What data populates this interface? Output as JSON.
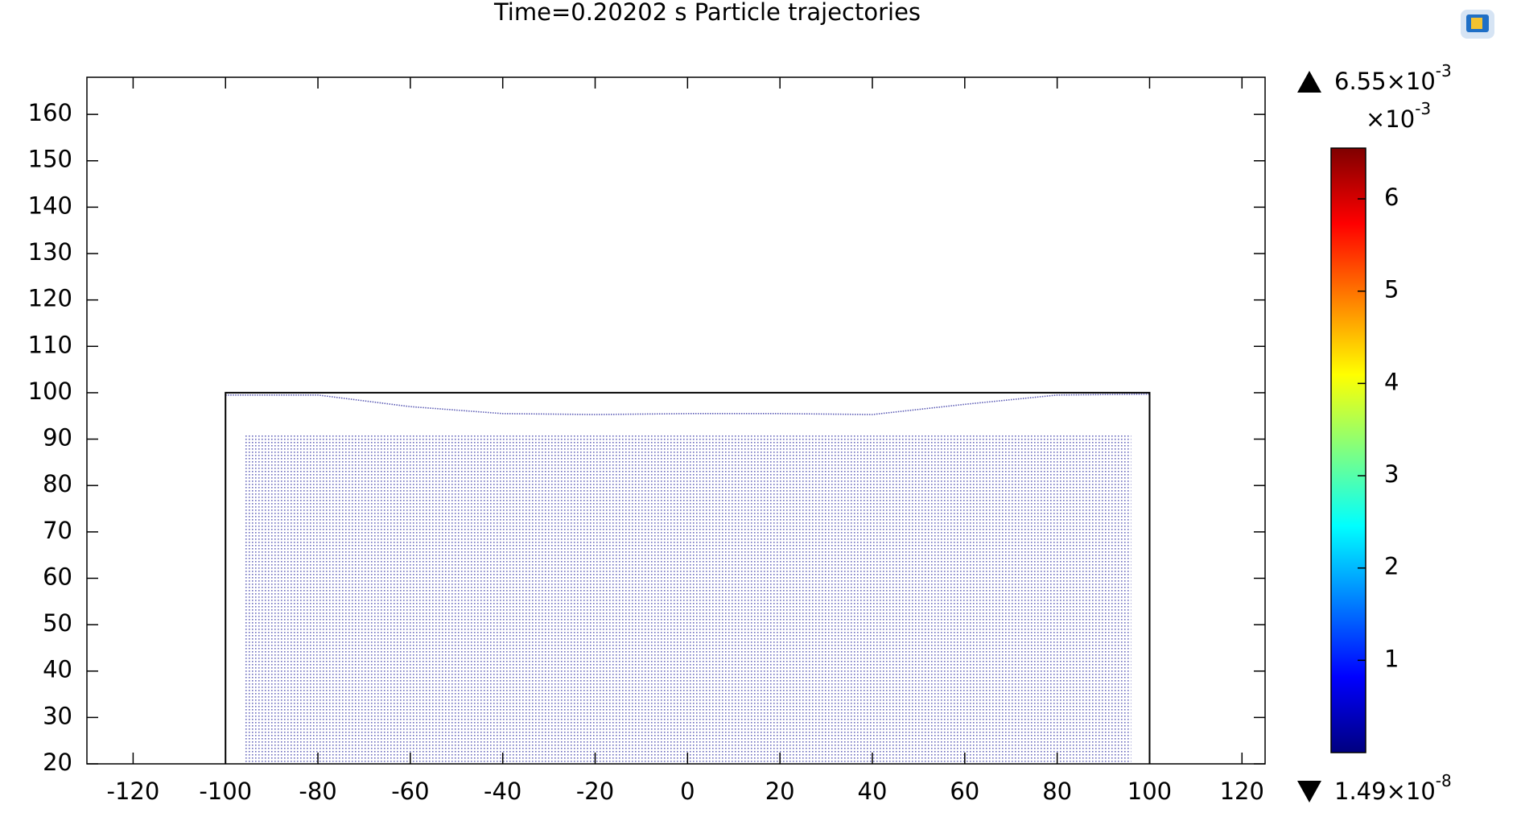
{
  "chart_data": {
    "type": "particles",
    "title": "Time=0.20202 s  Particle trajectories",
    "xlim": [
      -130,
      125
    ],
    "ylim": [
      20,
      168
    ],
    "xticks": [
      -120,
      -100,
      -80,
      -60,
      -40,
      -20,
      0,
      20,
      40,
      60,
      80,
      100,
      120
    ],
    "yticks": [
      20,
      30,
      40,
      50,
      60,
      70,
      80,
      90,
      100,
      110,
      120,
      130,
      140,
      150,
      160
    ],
    "domain": {
      "x": [
        -100,
        100
      ],
      "y": [
        20,
        100
      ],
      "color": "#000000"
    },
    "particles": {
      "x": [
        -96,
        96
      ],
      "y": [
        20,
        91
      ],
      "color": "#5a5ab4"
    },
    "surface": {
      "x": [
        -100,
        -80,
        -60,
        -40,
        -20,
        0,
        20,
        40,
        60,
        80,
        100
      ],
      "y": [
        99.5,
        99.5,
        97,
        95.5,
        95.3,
        95.5,
        95.5,
        95.3,
        97.5,
        99.5,
        99.7
      ],
      "color": "#5a5ab4"
    },
    "colorbar": {
      "clim": [
        0,
        6.55
      ],
      "ticks": [
        1,
        2,
        3,
        4,
        5,
        6
      ],
      "max_label": "6.55×10",
      "max_exponent": "-3",
      "multiplier": "×10",
      "multiplier_exponent": "-3",
      "min_label": "1.49×10",
      "min_exponent": "-8",
      "colors": [
        "#00007f",
        "#0000ff",
        "#0080ff",
        "#00ffff",
        "#80ff80",
        "#ffff00",
        "#ff8000",
        "#ff0000",
        "#7f0000"
      ]
    }
  }
}
